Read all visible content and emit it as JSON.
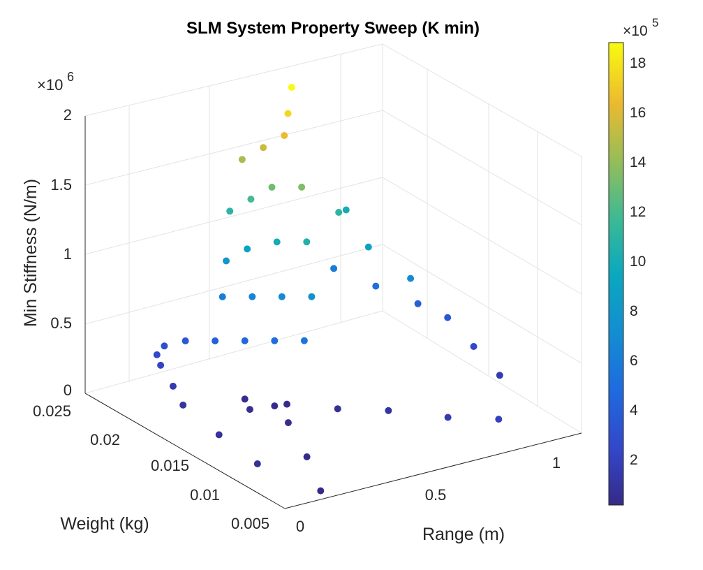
{
  "chart_data": {
    "type": "scatter3d",
    "title": "SLM System Property Sweep (K min)",
    "xlabel": "Range (m)",
    "ylabel": "Weight (kg)",
    "zlabel": "Min Stiffness (N/m)",
    "x_ticks": [
      "0",
      "0.5",
      "1"
    ],
    "y_ticks": [
      "0.025",
      "0.02",
      "0.015",
      "0.01",
      "0.005"
    ],
    "z_ticks": [
      "0",
      "0.5",
      "1",
      "1.5",
      "2"
    ],
    "z_exponent": "6",
    "colorbar_ticks": [
      "2",
      "4",
      "6",
      "8",
      "10",
      "12",
      "14",
      "16",
      "18"
    ],
    "colorbar_exponent": "5",
    "xlim": [
      0,
      1.2
    ],
    "ylim": [
      0.003,
      0.026
    ],
    "zlim": [
      0,
      2000000
    ],
    "clim": [
      10000,
      1880000
    ],
    "colormap": "parula",
    "grid": true,
    "series": [
      {
        "values": [
          {
            "x": 0.18,
            "y": 0.025,
            "z": 10000
          },
          {
            "x": 0.3,
            "y": 0.02,
            "z": 20000
          },
          {
            "x": 0.4,
            "y": 0.015,
            "z": 40000
          },
          {
            "x": 0.45,
            "y": 0.012,
            "z": 30000
          },
          {
            "x": 0.1,
            "y": 0.02,
            "z": 60000
          },
          {
            "x": 0.12,
            "y": 0.015,
            "z": 80000
          },
          {
            "x": 0.15,
            "y": 0.01,
            "z": 100000
          },
          {
            "x": 0.18,
            "y": 0.008,
            "z": 150000
          },
          {
            "x": 0.2,
            "y": 0.006,
            "z": 220000
          },
          {
            "x": 0.22,
            "y": 0.005,
            "z": 250000
          },
          {
            "x": 0.25,
            "y": 0.005,
            "z": 300000
          },
          {
            "x": 0.3,
            "y": 0.006,
            "z": 350000
          },
          {
            "x": 0.35,
            "y": 0.008,
            "z": 400000
          },
          {
            "x": 0.4,
            "y": 0.01,
            "z": 450000
          },
          {
            "x": 0.45,
            "y": 0.012,
            "z": 500000
          },
          {
            "x": 0.5,
            "y": 0.014,
            "z": 550000
          },
          {
            "x": 0.45,
            "y": 0.006,
            "z": 600000
          },
          {
            "x": 0.5,
            "y": 0.008,
            "z": 650000
          },
          {
            "x": 0.55,
            "y": 0.01,
            "z": 700000
          },
          {
            "x": 0.6,
            "y": 0.012,
            "z": 750000
          },
          {
            "x": 0.5,
            "y": 0.005,
            "z": 800000
          },
          {
            "x": 0.55,
            "y": 0.006,
            "z": 900000
          },
          {
            "x": 0.6,
            "y": 0.008,
            "z": 1000000
          },
          {
            "x": 0.65,
            "y": 0.01,
            "z": 1050000
          },
          {
            "x": 0.55,
            "y": 0.004,
            "z": 1100000
          },
          {
            "x": 0.6,
            "y": 0.005,
            "z": 1200000
          },
          {
            "x": 0.65,
            "y": 0.006,
            "z": 1300000
          },
          {
            "x": 0.7,
            "y": 0.008,
            "z": 1350000
          },
          {
            "x": 0.6,
            "y": 0.004,
            "z": 1450000
          },
          {
            "x": 0.65,
            "y": 0.005,
            "z": 1550000
          },
          {
            "x": 0.7,
            "y": 0.006,
            "z": 1650000
          },
          {
            "x": 0.75,
            "y": 0.005,
            "z": 1750000
          },
          {
            "x": 0.8,
            "y": 0.004,
            "z": 1880000
          },
          {
            "x": 0.9,
            "y": 0.006,
            "z": 600000
          },
          {
            "x": 1.0,
            "y": 0.008,
            "z": 500000
          },
          {
            "x": 1.1,
            "y": 0.01,
            "z": 400000
          },
          {
            "x": 1.15,
            "y": 0.012,
            "z": 350000
          },
          {
            "x": 1.15,
            "y": 0.015,
            "z": 250000
          },
          {
            "x": 1.15,
            "y": 0.018,
            "z": 150000
          },
          {
            "x": 0.9,
            "y": 0.01,
            "z": 900000
          },
          {
            "x": 1.0,
            "y": 0.012,
            "z": 700000
          },
          {
            "x": 0.85,
            "y": 0.008,
            "z": 1100000
          },
          {
            "x": 0.95,
            "y": 0.006,
            "z": 1000000
          },
          {
            "x": 0.35,
            "y": 0.012,
            "z": 50000
          },
          {
            "x": 0.4,
            "y": 0.01,
            "z": 30000
          },
          {
            "x": 0.5,
            "y": 0.012,
            "z": 20000
          },
          {
            "x": 0.6,
            "y": 0.015,
            "z": 50000
          },
          {
            "x": 0.7,
            "y": 0.018,
            "z": 100000
          },
          {
            "x": 0.8,
            "y": 0.022,
            "z": 150000
          },
          {
            "x": 0.9,
            "y": 0.025,
            "z": 200000
          }
        ]
      }
    ]
  }
}
